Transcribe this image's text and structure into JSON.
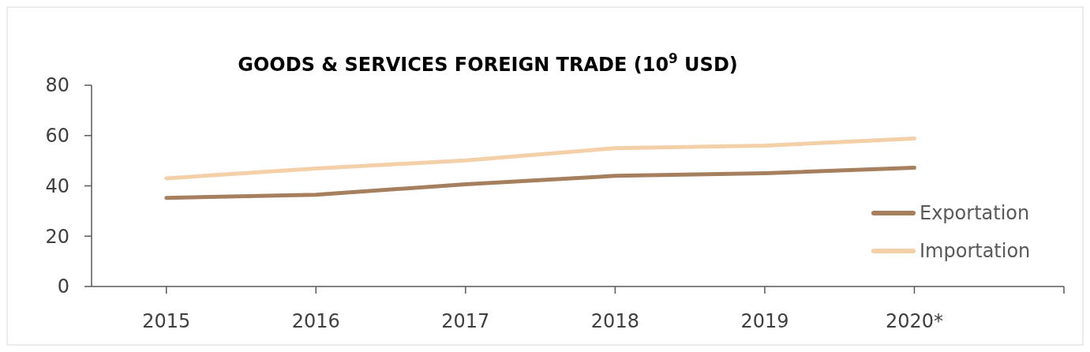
{
  "chart_data": {
    "type": "line",
    "title": "GOODS & SERVICES FOREIGN TRADE (10$^{9}$ USD)",
    "categories": [
      "2015",
      "2016",
      "2017",
      "2018",
      "2019",
      "2020*"
    ],
    "series": [
      {
        "name": "Exportation",
        "color": "#a6805e",
        "values": [
          35.2,
          36.5,
          40.6,
          44.0,
          45.0,
          47.2
        ]
      },
      {
        "name": "Importation",
        "color": "#f4d0a9",
        "values": [
          43.0,
          46.9,
          50.1,
          55.0,
          56.0,
          58.8
        ]
      }
    ],
    "ylim": [
      0,
      80
    ],
    "yticks": [
      0,
      20,
      40,
      60,
      80
    ],
    "grid": false,
    "legend": "right",
    "marker": "none",
    "line_style": "solid"
  }
}
